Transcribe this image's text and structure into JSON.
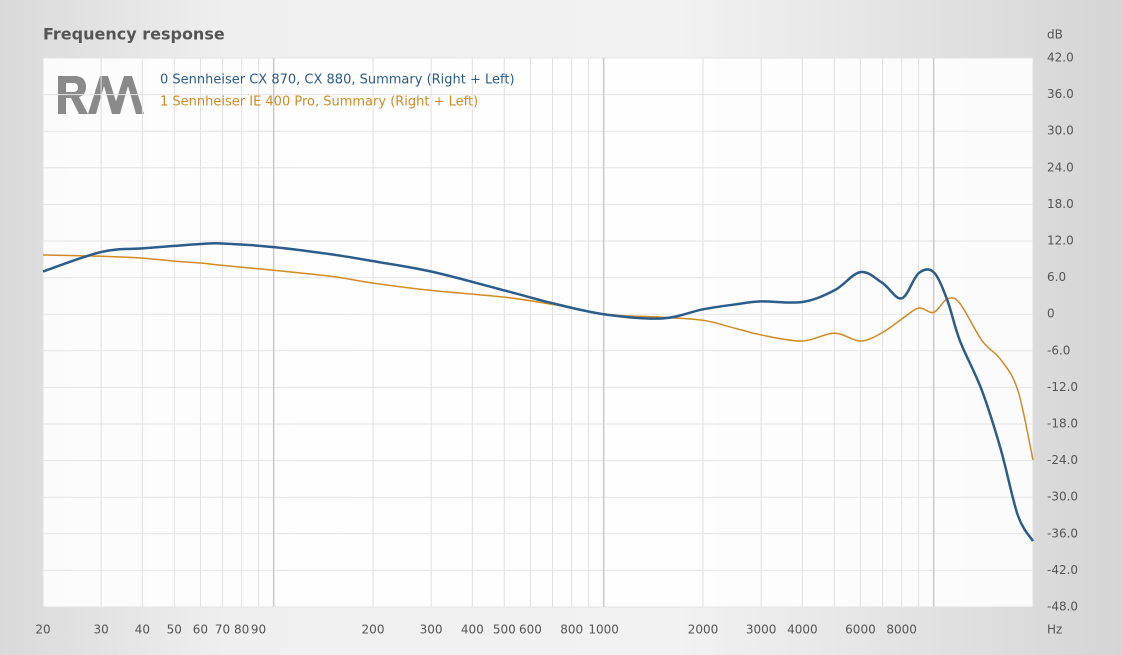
{
  "chart_data": {
    "type": "line",
    "title": "Frequency response",
    "x_unit": "Hz",
    "y_unit": "dB",
    "log_x": true,
    "grid": true,
    "x": [
      20,
      30,
      40,
      50,
      60,
      70,
      100,
      150,
      200,
      300,
      500,
      700,
      1000,
      1500,
      2000,
      2500,
      3000,
      4000,
      5000,
      6000,
      7000,
      8000,
      9000,
      10000,
      11000,
      12000,
      14000,
      16000,
      18000,
      20000
    ],
    "series": [
      {
        "name": "0 Sennheiser CX 870, CX 880, Summary (Right + Left)",
        "color": "#2c5d8a",
        "values": [
          7.0,
          10.2,
          10.8,
          11.2,
          11.5,
          11.6,
          11.0,
          9.8,
          8.7,
          7.0,
          3.9,
          1.8,
          0,
          -0.7,
          0.8,
          1.6,
          2.1,
          2.0,
          3.9,
          6.9,
          5.1,
          2.6,
          6.7,
          6.9,
          2.3,
          -4.3,
          -12.5,
          -22.3,
          -33.0,
          -37.2
        ]
      },
      {
        "name": "1 Sennheiser IE 400 Pro, Summary (Right + Left)",
        "color": "#d08b25",
        "values": [
          9.7,
          9.5,
          9.2,
          8.7,
          8.4,
          8.0,
          7.2,
          6.2,
          5.1,
          3.9,
          2.8,
          1.6,
          0,
          -0.5,
          -1.0,
          -2.3,
          -3.4,
          -4.4,
          -3.1,
          -4.4,
          -3.0,
          -0.8,
          1.0,
          0.3,
          2.5,
          1.8,
          -4.3,
          -7.5,
          -12.5,
          -23.9
        ]
      }
    ],
    "xlim": [
      20,
      20000
    ],
    "ylim": [
      -48,
      42
    ],
    "xticks": [
      20,
      30,
      40,
      50,
      60,
      70,
      80,
      90,
      200,
      300,
      400,
      500,
      600,
      800,
      1000,
      2000,
      3000,
      4000,
      6000,
      8000
    ],
    "xgrid": [
      100,
      700,
      900,
      5000,
      7000,
      9000,
      10000,
      20000
    ],
    "yticks": [
      {
        "value": 42,
        "label": "42.0"
      },
      {
        "value": 36,
        "label": "36.0"
      },
      {
        "value": 30,
        "label": "30.0"
      },
      {
        "value": 24,
        "label": "24.0"
      },
      {
        "value": 18,
        "label": "18.0"
      },
      {
        "value": 12,
        "label": "12.0"
      },
      {
        "value": 6,
        "label": "6.0"
      },
      0,
      {
        "value": -6,
        "label": "-6.0"
      },
      {
        "value": -12,
        "label": "-12.0"
      },
      {
        "value": -18,
        "label": "-18.0"
      },
      {
        "value": -24,
        "label": "-24.0"
      },
      {
        "value": -30,
        "label": "-30.0"
      },
      {
        "value": -36,
        "label": "-36.0"
      },
      {
        "value": -42,
        "label": "-42.0"
      },
      {
        "value": -48,
        "label": "-48.0"
      }
    ]
  }
}
